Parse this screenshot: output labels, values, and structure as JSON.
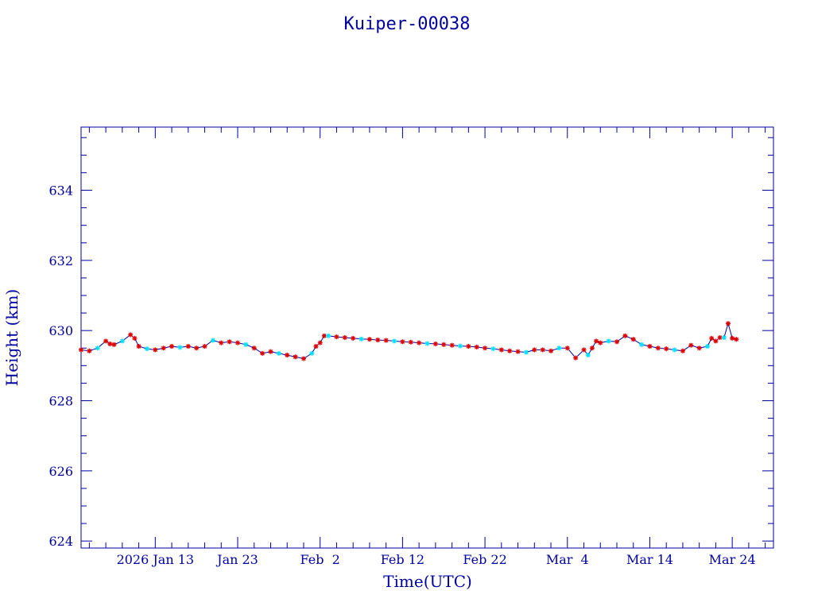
{
  "chart_data": {
    "type": "line",
    "title": "Kuiper-00038",
    "xlabel": "Time(UTC)",
    "ylabel": "Height (km)",
    "ylim": [
      623.8,
      635.8
    ],
    "xlim": [
      "2026-01-04",
      "2026-03-29"
    ],
    "grid": false,
    "colors": {
      "axis": "#0000a0",
      "line": "#0000a0",
      "marker_red": "#e00000",
      "marker_cyan": "#00e0ff"
    },
    "y_ticks": [
      {
        "value": 624,
        "label": "624"
      },
      {
        "value": 626,
        "label": "626"
      },
      {
        "value": 628,
        "label": "628"
      },
      {
        "value": 630,
        "label": "630"
      },
      {
        "value": 632,
        "label": "632"
      },
      {
        "value": 634,
        "label": "634"
      }
    ],
    "x_ticks": [
      {
        "date": "2026-01-13",
        "label": "2026 Jan 13"
      },
      {
        "date": "2026-01-23",
        "label": "Jan 23"
      },
      {
        "date": "2026-02-02",
        "label": "Feb  2"
      },
      {
        "date": "2026-02-12",
        "label": "Feb 12"
      },
      {
        "date": "2026-02-22",
        "label": "Feb 22"
      },
      {
        "date": "2026-03-04",
        "label": "Mar  4"
      },
      {
        "date": "2026-03-14",
        "label": "Mar 14"
      },
      {
        "date": "2026-03-24",
        "label": "Mar 24"
      }
    ],
    "series": [
      {
        "points": [
          [
            "2026-01-04",
            629.45
          ],
          [
            "2026-01-05",
            629.42
          ],
          [
            "2026-01-06",
            629.5
          ],
          [
            "2026-01-07",
            629.7
          ],
          [
            "2026-01-07.5",
            629.62
          ],
          [
            "2026-01-08",
            629.6
          ],
          [
            "2026-01-09",
            629.7
          ],
          [
            "2026-01-10",
            629.88
          ],
          [
            "2026-01-10.5",
            629.78
          ],
          [
            "2026-01-11",
            629.55
          ],
          [
            "2026-01-12",
            629.48
          ],
          [
            "2026-01-13",
            629.45
          ],
          [
            "2026-01-14",
            629.5
          ],
          [
            "2026-01-15",
            629.55
          ],
          [
            "2026-01-16",
            629.52
          ],
          [
            "2026-01-17",
            629.55
          ],
          [
            "2026-01-18",
            629.5
          ],
          [
            "2026-01-19",
            629.55
          ],
          [
            "2026-01-20",
            629.72
          ],
          [
            "2026-01-21",
            629.65
          ],
          [
            "2026-01-22",
            629.68
          ],
          [
            "2026-01-23",
            629.65
          ],
          [
            "2026-01-24",
            629.6
          ],
          [
            "2026-01-25",
            629.5
          ],
          [
            "2026-01-26",
            629.35
          ],
          [
            "2026-01-27",
            629.4
          ],
          [
            "2026-01-28",
            629.35
          ],
          [
            "2026-01-29",
            629.3
          ],
          [
            "2026-01-30",
            629.25
          ],
          [
            "2026-01-31",
            629.2
          ],
          [
            "2026-02-01",
            629.35
          ],
          [
            "2026-02-01.5",
            629.55
          ],
          [
            "2026-02-02",
            629.65
          ],
          [
            "2026-02-02.5",
            629.85
          ],
          [
            "2026-02-03",
            629.85
          ],
          [
            "2026-02-04",
            629.82
          ],
          [
            "2026-02-05",
            629.8
          ],
          [
            "2026-02-06",
            629.78
          ],
          [
            "2026-02-07",
            629.76
          ],
          [
            "2026-02-08",
            629.75
          ],
          [
            "2026-02-09",
            629.73
          ],
          [
            "2026-02-10",
            629.72
          ],
          [
            "2026-02-11",
            629.7
          ],
          [
            "2026-02-12",
            629.68
          ],
          [
            "2026-02-13",
            629.67
          ],
          [
            "2026-02-14",
            629.65
          ],
          [
            "2026-02-15",
            629.63
          ],
          [
            "2026-02-16",
            629.62
          ],
          [
            "2026-02-17",
            629.6
          ],
          [
            "2026-02-18",
            629.58
          ],
          [
            "2026-02-19",
            629.56
          ],
          [
            "2026-02-20",
            629.55
          ],
          [
            "2026-02-21",
            629.53
          ],
          [
            "2026-02-22",
            629.5
          ],
          [
            "2026-02-23",
            629.48
          ],
          [
            "2026-02-24",
            629.45
          ],
          [
            "2026-02-25",
            629.42
          ],
          [
            "2026-02-26",
            629.4
          ],
          [
            "2026-02-27",
            629.38
          ],
          [
            "2026-02-28",
            629.45
          ],
          [
            "2026-03-01",
            629.45
          ],
          [
            "2026-03-02",
            629.42
          ],
          [
            "2026-03-03",
            629.5
          ],
          [
            "2026-03-04",
            629.5
          ],
          [
            "2026-03-05",
            629.22
          ],
          [
            "2026-03-06",
            629.45
          ],
          [
            "2026-03-06.5",
            629.3
          ],
          [
            "2026-03-07",
            629.5
          ],
          [
            "2026-03-07.5",
            629.7
          ],
          [
            "2026-03-08",
            629.65
          ],
          [
            "2026-03-09",
            629.7
          ],
          [
            "2026-03-10",
            629.68
          ],
          [
            "2026-03-11",
            629.85
          ],
          [
            "2026-03-12",
            629.75
          ],
          [
            "2026-03-13",
            629.6
          ],
          [
            "2026-03-14",
            629.55
          ],
          [
            "2026-03-15",
            629.5
          ],
          [
            "2026-03-16",
            629.48
          ],
          [
            "2026-03-17",
            629.45
          ],
          [
            "2026-03-18",
            629.42
          ],
          [
            "2026-03-19",
            629.58
          ],
          [
            "2026-03-20",
            629.5
          ],
          [
            "2026-03-21",
            629.55
          ],
          [
            "2026-03-21.5",
            629.78
          ],
          [
            "2026-03-22",
            629.7
          ],
          [
            "2026-03-22.5",
            629.8
          ],
          [
            "2026-03-23",
            629.8
          ],
          [
            "2026-03-23.5",
            630.2
          ],
          [
            "2026-03-24",
            629.78
          ],
          [
            "2026-03-24.5",
            629.75
          ]
        ]
      }
    ]
  }
}
